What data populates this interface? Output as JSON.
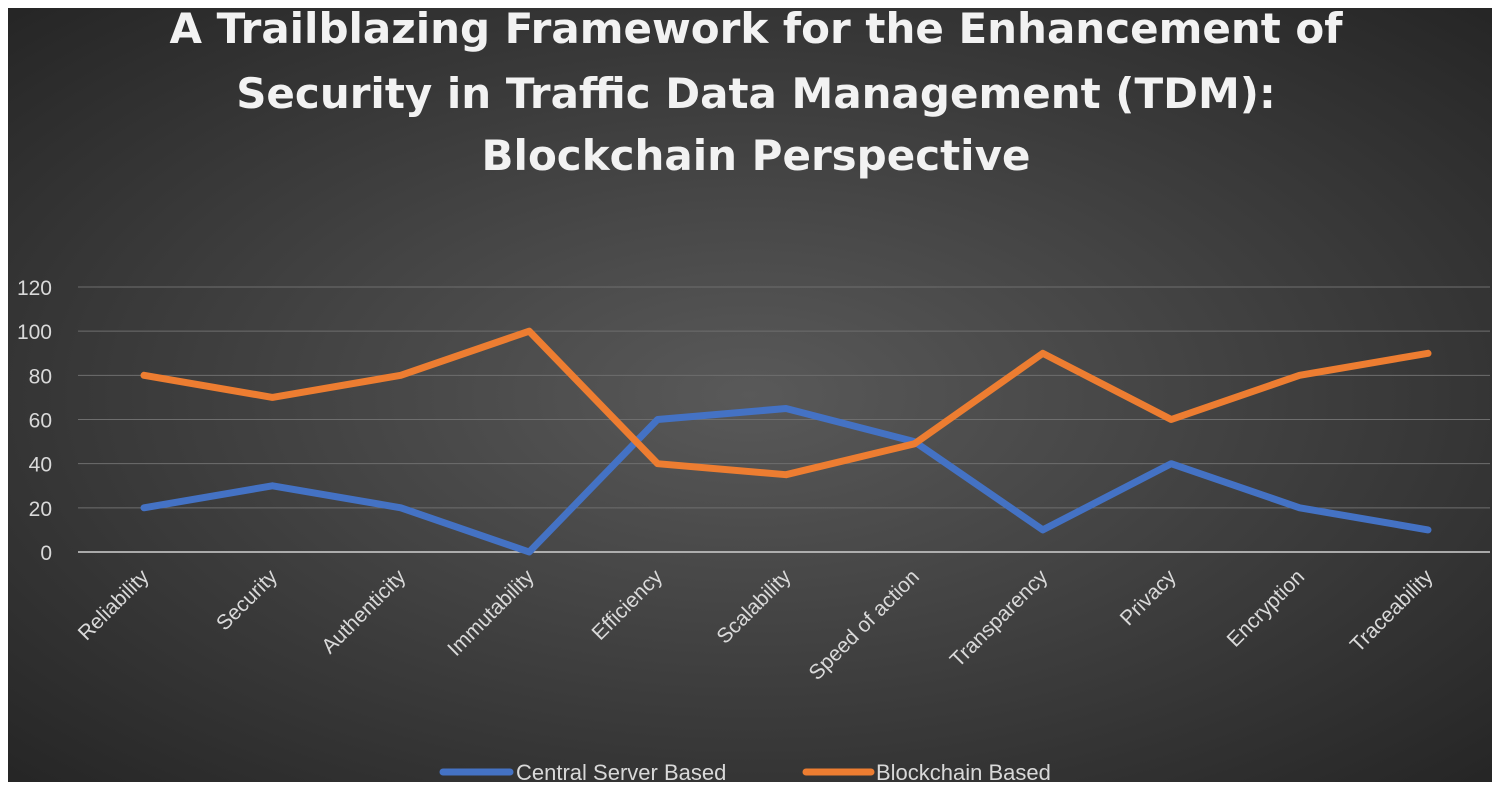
{
  "chart_data": {
    "type": "line",
    "title": "A Trailblazing Framework for the Enhancement of Security in Traffic Data Management (TDM): Blockchain Perspective",
    "title_lines": [
      "A Trailblazing Framework for the Enhancement of",
      "Security in Traffic Data Management (TDM):",
      "Blockchain Perspective"
    ],
    "categories": [
      "Reliability",
      "Security",
      "Authenticity",
      "Immutability",
      "Efficiency",
      "Scalability",
      "Speed of action",
      "Transparency",
      "Privacy",
      "Encryption",
      "Traceability"
    ],
    "series": [
      {
        "name": "Central Server Based",
        "color": "#4472c4",
        "values": [
          20,
          30,
          20,
          0,
          60,
          65,
          50,
          10,
          40,
          20,
          10
        ]
      },
      {
        "name": "Blockchain Based",
        "color": "#ed7d31",
        "values": [
          80,
          70,
          80,
          100,
          40,
          35,
          49,
          90,
          60,
          80,
          90
        ]
      }
    ],
    "ylim": [
      0,
      120
    ],
    "yticks": [
      0,
      20,
      40,
      60,
      80,
      100,
      120
    ],
    "xlabel": "",
    "ylabel": "",
    "grid": true,
    "legend_position": "bottom",
    "background": "dark-radial-gradient"
  }
}
